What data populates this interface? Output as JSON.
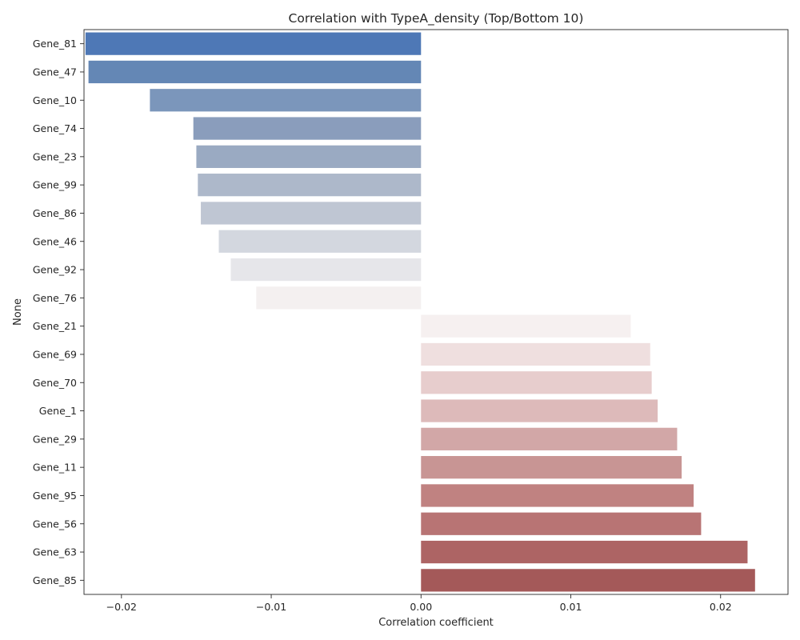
{
  "chart_data": {
    "type": "bar",
    "orientation": "horizontal",
    "title": "Correlation with TypeA_density (Top/Bottom 10)",
    "xlabel": "Correlation coefficient",
    "ylabel": "None",
    "xlim": [
      -0.0225,
      0.0245
    ],
    "xticks": [
      -0.02,
      -0.01,
      0.0,
      0.01,
      0.02
    ],
    "xtick_labels": [
      "−0.02",
      "−0.01",
      "0.00",
      "0.01",
      "0.02"
    ],
    "grid": false,
    "legend": "none",
    "palette": "vlag",
    "categories": [
      "Gene_81",
      "Gene_47",
      "Gene_10",
      "Gene_74",
      "Gene_23",
      "Gene_99",
      "Gene_86",
      "Gene_46",
      "Gene_92",
      "Gene_76",
      "Gene_21",
      "Gene_69",
      "Gene_70",
      "Gene_1",
      "Gene_29",
      "Gene_11",
      "Gene_95",
      "Gene_56",
      "Gene_63",
      "Gene_85"
    ],
    "values": [
      -0.0224,
      -0.0222,
      -0.0181,
      -0.0152,
      -0.015,
      -0.0149,
      -0.0147,
      -0.0135,
      -0.0127,
      -0.011,
      0.014,
      0.0153,
      0.0154,
      0.0158,
      0.0171,
      0.0174,
      0.0182,
      0.0187,
      0.0218,
      0.0223
    ],
    "colors": [
      "#4e78b6",
      "#6487b5",
      "#7b96bb",
      "#8a9dbc",
      "#9aaac2",
      "#adb8ca",
      "#bfc6d3",
      "#d3d7df",
      "#e6e6ea",
      "#f4f0f0",
      "#f6f0f0",
      "#efdfdf",
      "#e7cdcd",
      "#ddbaba",
      "#d2a7a7",
      "#c89594",
      "#c08281",
      "#b87474",
      "#ad6464",
      "#a45959"
    ]
  }
}
